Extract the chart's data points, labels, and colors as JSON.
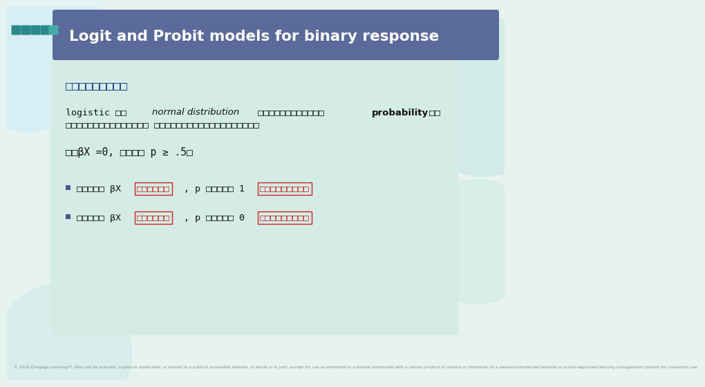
{
  "title": "Logit and Probit models for binary response",
  "title_bg_color": "#5a6a9a",
  "title_text_color": "#ffffff",
  "slide_bg_color": "#e6f3f0",
  "content_bg_color": "#d4ece5",
  "circle_color1": "#c5e8e2",
  "circle_color2": "#c5e8e2",
  "circle_color3": "#d0eef8",
  "sq_colors": [
    "#2a8a8a",
    "#2a8a8a",
    "#2a8a8a",
    "#2a8a8a",
    "#2aaaaa"
  ],
  "subtitle_text": "□□□□□□□□□",
  "subtitle_color": "#1a3a8a",
  "footer": "© 2016 Cengage Learning®. May not be scanned, copied or duplicated, or posted to a publicly accessible website, in whole or in part, except for use as permitted in a license distributed with a certain product or service or otherwise on a password-protected website or school-approved learning management system for classroom use.",
  "footer_color": "#888888",
  "bullet_color": "#4a5a8a",
  "red_color": "#cc2222",
  "black_color": "#111111"
}
